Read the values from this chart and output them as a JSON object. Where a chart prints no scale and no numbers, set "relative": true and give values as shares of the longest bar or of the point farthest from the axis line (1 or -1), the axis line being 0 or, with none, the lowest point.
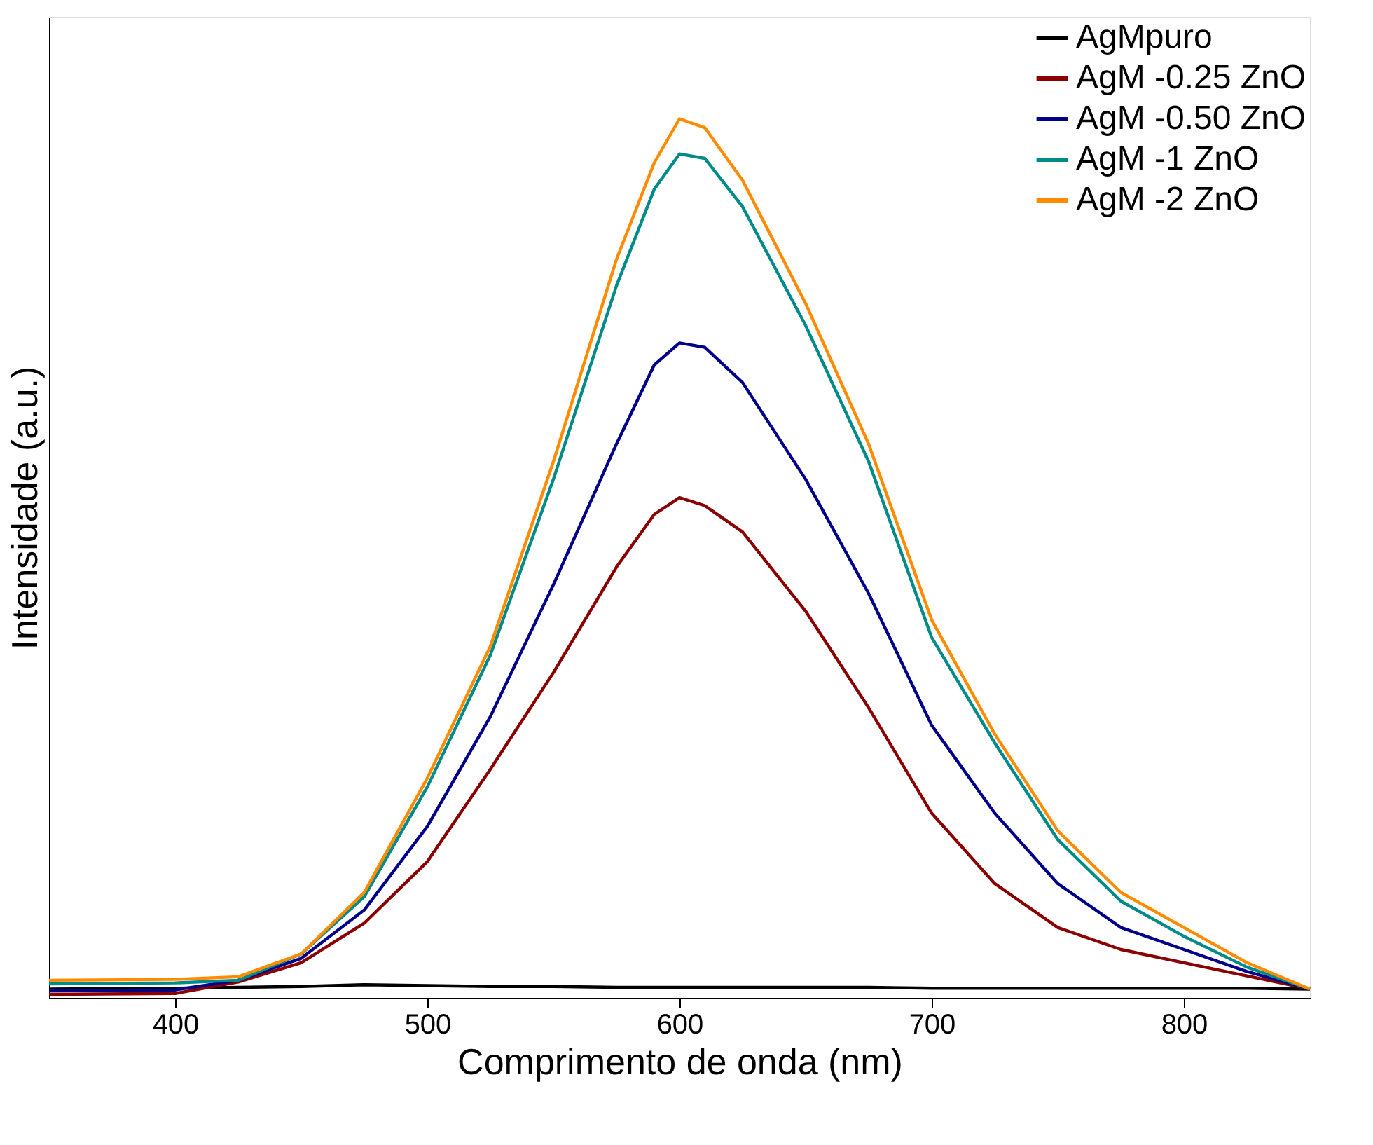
{
  "chart_data": {
    "type": "line",
    "xlabel": "Comprimento de onda (nm)",
    "ylabel": "Intensidade (a.u.)",
    "relative": true,
    "x": [
      350,
      400,
      425,
      450,
      475,
      500,
      525,
      550,
      575,
      590,
      600,
      610,
      625,
      650,
      675,
      700,
      725,
      750,
      775,
      800,
      825,
      850
    ],
    "xlim": [
      350,
      850
    ],
    "xticks": [
      400,
      500,
      600,
      700,
      800
    ],
    "legend": "top right",
    "grid": false,
    "line_style": "solid",
    "marker": "none",
    "series": [
      {
        "name": "AgMpuro",
        "color": "#000000",
        "values": [
          0.01,
          0.011,
          0.012,
          0.013,
          0.015,
          0.014,
          0.013,
          0.013,
          0.012,
          0.012,
          0.012,
          0.012,
          0.012,
          0.012,
          0.012,
          0.011,
          0.011,
          0.011,
          0.011,
          0.011,
          0.011,
          0.01
        ]
      },
      {
        "name": "AgM -0.25 ZnO",
        "color": "#8b0000",
        "values": [
          0.004,
          0.005,
          0.018,
          0.04,
          0.085,
          0.155,
          0.26,
          0.37,
          0.49,
          0.55,
          0.569,
          0.56,
          0.53,
          0.44,
          0.33,
          0.21,
          0.13,
          0.08,
          0.055,
          0.04,
          0.025,
          0.01
        ]
      },
      {
        "name": "AgM -0.50 ZnO",
        "color": "#00008b",
        "values": [
          0.008,
          0.009,
          0.02,
          0.045,
          0.1,
          0.195,
          0.32,
          0.47,
          0.63,
          0.72,
          0.745,
          0.74,
          0.7,
          0.59,
          0.46,
          0.31,
          0.21,
          0.13,
          0.08,
          0.055,
          0.03,
          0.01
        ]
      },
      {
        "name": "AgM -1 ZnO",
        "color": "#008b8b",
        "values": [
          0.016,
          0.017,
          0.02,
          0.05,
          0.115,
          0.24,
          0.39,
          0.59,
          0.81,
          0.92,
          0.96,
          0.955,
          0.9,
          0.765,
          0.61,
          0.41,
          0.29,
          0.18,
          0.11,
          0.07,
          0.035,
          0.01
        ]
      },
      {
        "name": "AgM -2 ZnO",
        "color": "#ff8c00",
        "values": [
          0.02,
          0.021,
          0.024,
          0.05,
          0.12,
          0.25,
          0.4,
          0.61,
          0.84,
          0.95,
          1.0,
          0.99,
          0.93,
          0.79,
          0.63,
          0.43,
          0.3,
          0.19,
          0.12,
          0.08,
          0.04,
          0.01
        ]
      }
    ]
  }
}
